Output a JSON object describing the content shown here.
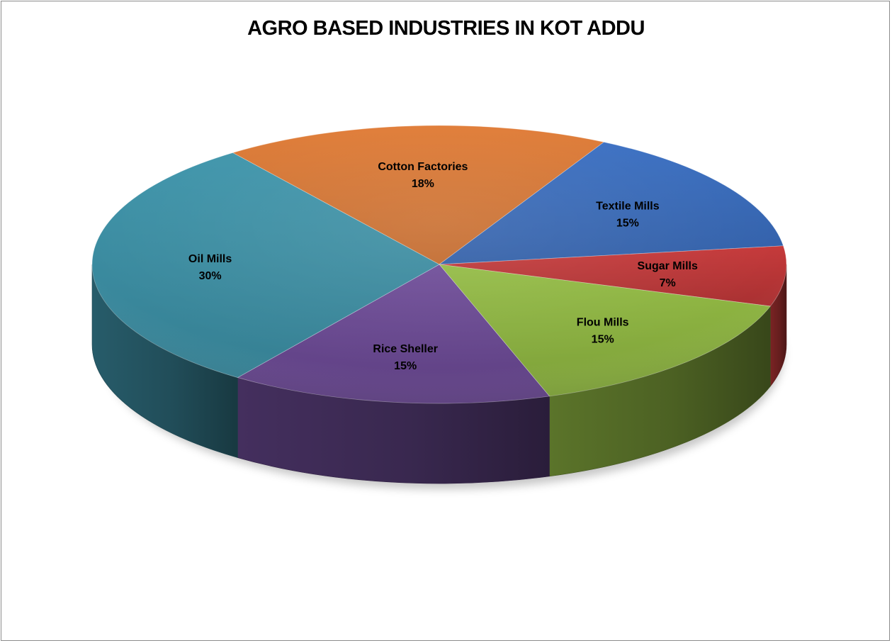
{
  "chart_data": {
    "type": "pie",
    "style": "3d",
    "title": "AGRO BASED INDUSTRIES IN KOT ADDU",
    "slices": [
      {
        "label": "Cotton Factories",
        "value": 18,
        "display": "18%",
        "color": "#E07B35"
      },
      {
        "label": "Textile Mills",
        "value": 15,
        "display": "15%",
        "color": "#3A6FC2"
      },
      {
        "label": "Sugar Mills",
        "value": 7,
        "display": "7%",
        "color": "#C5393A"
      },
      {
        "label": "Flou Mills",
        "value": 15,
        "display": "15%",
        "color": "#93BB44"
      },
      {
        "label": "Rice Sheller",
        "value": 15,
        "display": "15%",
        "color": "#6E4C98"
      },
      {
        "label": "Oil Mills",
        "value": 30,
        "display": "30%",
        "color": "#3F95AB"
      }
    ]
  }
}
